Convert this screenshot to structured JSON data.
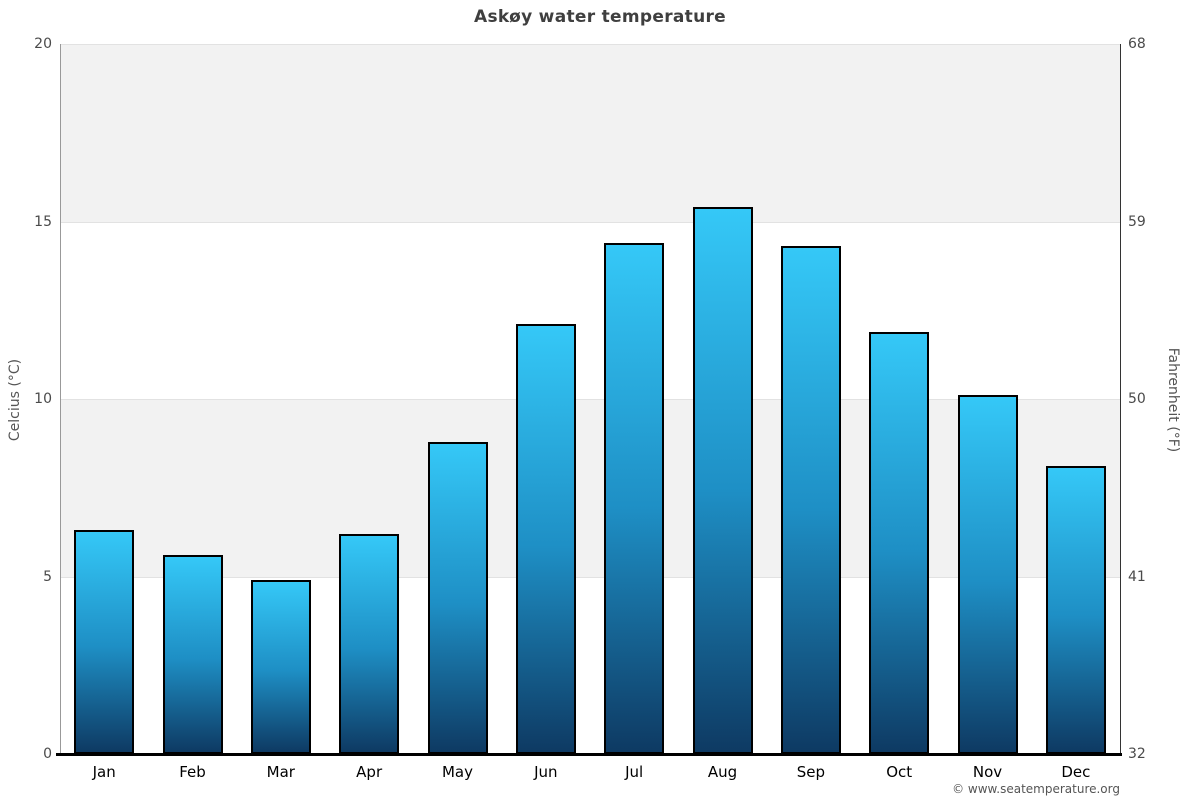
{
  "title": "Askøy water temperature",
  "copyright": "© www.seatemperature.org",
  "chart_data": {
    "type": "bar",
    "title": "Askøy water temperature",
    "categories": [
      "Jan",
      "Feb",
      "Mar",
      "Apr",
      "May",
      "Jun",
      "Jul",
      "Aug",
      "Sep",
      "Oct",
      "Nov",
      "Dec"
    ],
    "values": [
      6.3,
      5.6,
      4.9,
      6.2,
      8.8,
      12.1,
      14.4,
      15.4,
      14.3,
      11.9,
      10.1,
      8.1
    ],
    "ylabel_left": "Celcius (°C)",
    "ylabel_right": "Fahrenheit (°F)",
    "yticks_left": [
      0,
      5,
      10,
      15,
      20
    ],
    "yticks_right": [
      32,
      41,
      50,
      59,
      68
    ],
    "ylim": [
      0,
      20
    ],
    "legend": "none",
    "grid": "alternating-bands",
    "gray_bands": [
      {
        "from": 5,
        "to": 10
      },
      {
        "from": 15,
        "to": 20
      }
    ],
    "gridline_values": [
      5,
      10,
      15,
      20
    ],
    "colors": {
      "bar_gradient_top": "#35c8f7",
      "bar_gradient_mid": "#1e8fc5",
      "bar_gradient_bottom": "#0e3a63",
      "bar_border": "#000000",
      "band_gray": "#f2f2f2",
      "gridline": "#e2e2e2"
    }
  }
}
